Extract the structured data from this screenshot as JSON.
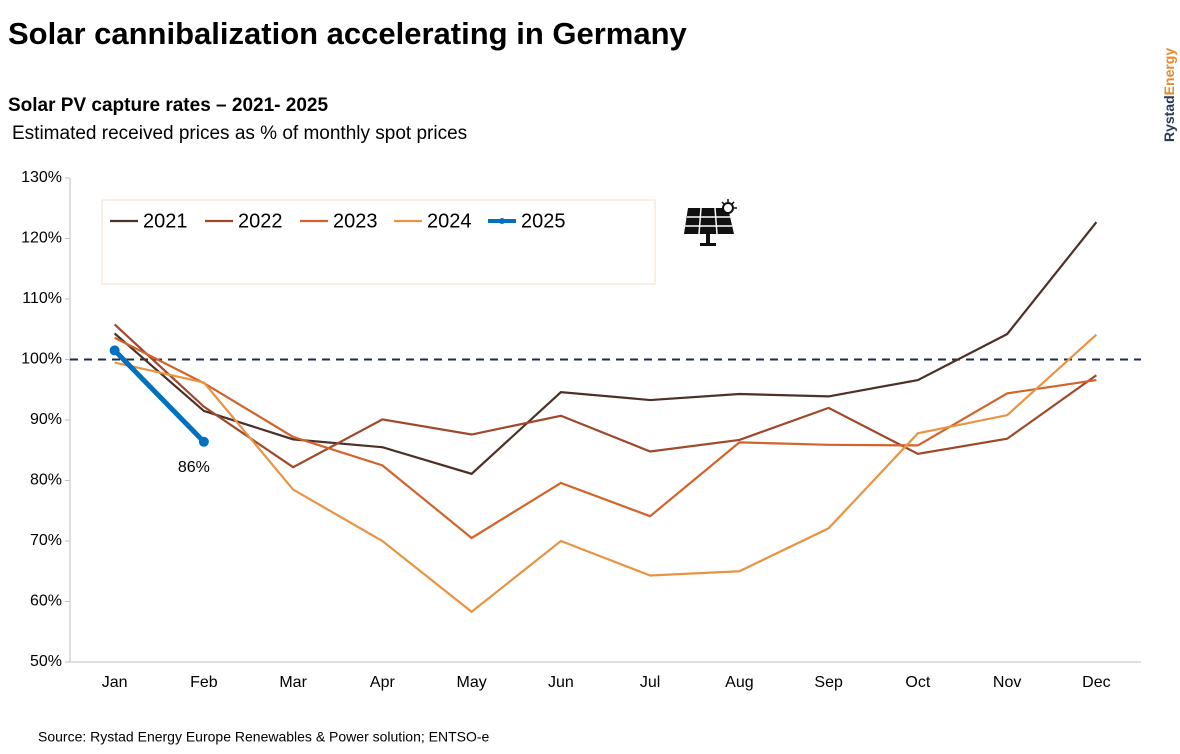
{
  "chart_data": {
    "type": "line",
    "title": "Solar cannibalization accelerating in Germany",
    "subtitle": "Solar PV capture rates – 2021- 2025",
    "y_label": "Estimated received prices as % of monthly spot prices",
    "source": "Source: Rystad Energy Europe Renewables & Power solution; ENTSO-e",
    "brand": [
      "Rystad",
      "Energy"
    ],
    "categories": [
      "Jan",
      "Feb",
      "Mar",
      "Apr",
      "May",
      "Jun",
      "Jul",
      "Aug",
      "Sep",
      "Oct",
      "Nov",
      "Dec"
    ],
    "series": [
      {
        "name": "2021",
        "color": "#4d3027",
        "values": [
          104.3,
          91.5,
          86.8,
          85.5,
          81.1,
          94.6,
          93.3,
          94.3,
          93.9,
          96.6,
          104.2,
          122.7
        ]
      },
      {
        "name": "2022",
        "color": "#a0482a",
        "values": [
          105.8,
          92.2,
          82.2,
          90.1,
          87.6,
          90.7,
          84.8,
          86.7,
          92.0,
          84.4,
          86.9,
          97.4
        ]
      },
      {
        "name": "2023",
        "color": "#d2642a",
        "values": [
          103.6,
          96.1,
          87.2,
          82.5,
          70.5,
          79.6,
          74.1,
          86.3,
          85.9,
          85.8,
          94.4,
          96.6
        ]
      },
      {
        "name": "2024",
        "color": "#e99443",
        "values": [
          99.5,
          96.2,
          78.5,
          70.0,
          58.3,
          70.0,
          64.3,
          65.0,
          72.1,
          87.8,
          90.8,
          104.1
        ]
      },
      {
        "name": "2025",
        "color": "#0070c0",
        "values": [
          101.5,
          86.4,
          null,
          null,
          null,
          null,
          null,
          null,
          null,
          null,
          null,
          null
        ],
        "value_labels": [
          null,
          "86%",
          null,
          null,
          null,
          null,
          null,
          null,
          null,
          null,
          null,
          null
        ]
      }
    ],
    "reference_line": 100,
    "ylim": [
      50,
      130
    ],
    "yticks": [
      {
        "value": 50,
        "label": "50%"
      },
      {
        "value": 60,
        "label": "60%"
      },
      {
        "value": 70,
        "label": "70%"
      },
      {
        "value": 80,
        "label": "80%"
      },
      {
        "value": 90,
        "label": "90%"
      },
      {
        "value": 100,
        "label": "100%"
      },
      {
        "value": 110,
        "label": "110%"
      },
      {
        "value": 120,
        "label": "120%"
      },
      {
        "value": 130,
        "label": "130%"
      }
    ],
    "grid": false
  }
}
